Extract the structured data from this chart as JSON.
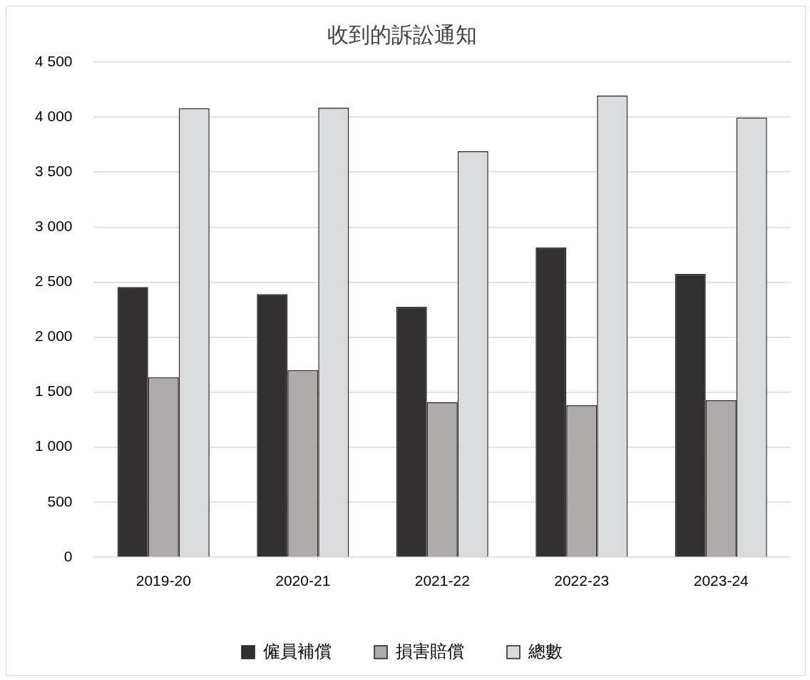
{
  "chart_data": {
    "type": "bar",
    "title": "收到的訴訟通知",
    "categories": [
      "2019-20",
      "2020-21",
      "2021-22",
      "2022-23",
      "2023-24"
    ],
    "series": [
      {
        "name": "僱員補償",
        "color": "#323031",
        "values": [
          2455,
          2390,
          2275,
          2815,
          2575
        ]
      },
      {
        "name": "損害賠償",
        "color": "#aeaaa9",
        "values": [
          1635,
          1700,
          1410,
          1380,
          1425
        ]
      },
      {
        "name": "總數",
        "color": "#dadbdd",
        "values": [
          4080,
          4085,
          3690,
          4195,
          3995
        ]
      }
    ],
    "ylim": [
      0,
      4500
    ],
    "yticks": [
      0,
      500,
      {
        "value": 1000,
        "label": "1 000"
      },
      {
        "value": 1500,
        "label": "1 500"
      },
      {
        "value": 2000,
        "label": "2 000"
      },
      {
        "value": 2500,
        "label": "2 500"
      },
      {
        "value": 3000,
        "label": "3 000"
      },
      {
        "value": 3500,
        "label": "3 500"
      },
      {
        "value": 4000,
        "label": "4 000"
      },
      {
        "value": 4500,
        "label": "4 500"
      }
    ],
    "grid": "y",
    "legend": "bottom"
  }
}
